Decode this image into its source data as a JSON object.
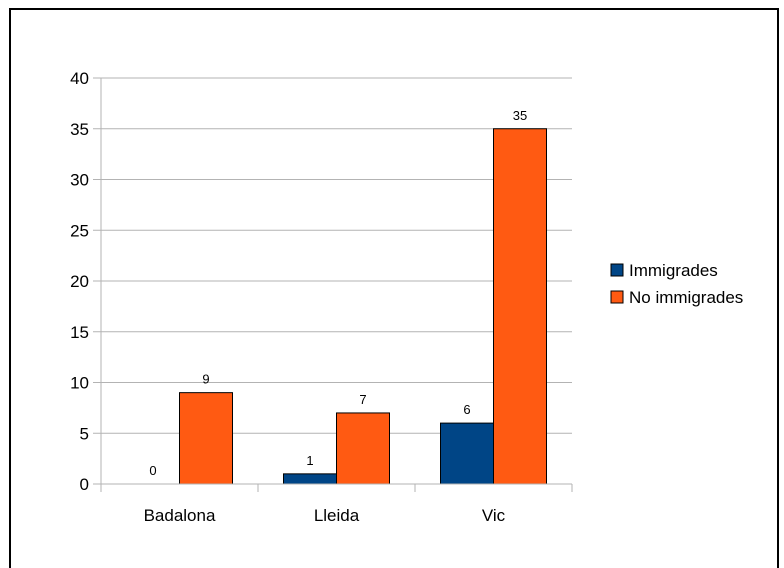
{
  "chart_data": {
    "type": "bar",
    "title": "",
    "xlabel": "",
    "ylabel": "",
    "categories": [
      "Badalona",
      "Lleida",
      "Vic"
    ],
    "series": [
      {
        "name": "Immigrades",
        "values": [
          0,
          1,
          6
        ],
        "color": "#004586"
      },
      {
        "name": "No immigrades",
        "values": [
          9,
          7,
          35
        ],
        "color": "#ff5a12"
      }
    ],
    "ylim": [
      0,
      40
    ],
    "yticks": [
      0,
      5,
      10,
      15,
      20,
      25,
      30,
      35,
      40
    ],
    "grid": true,
    "legend_position": "right",
    "data_labels": true
  }
}
